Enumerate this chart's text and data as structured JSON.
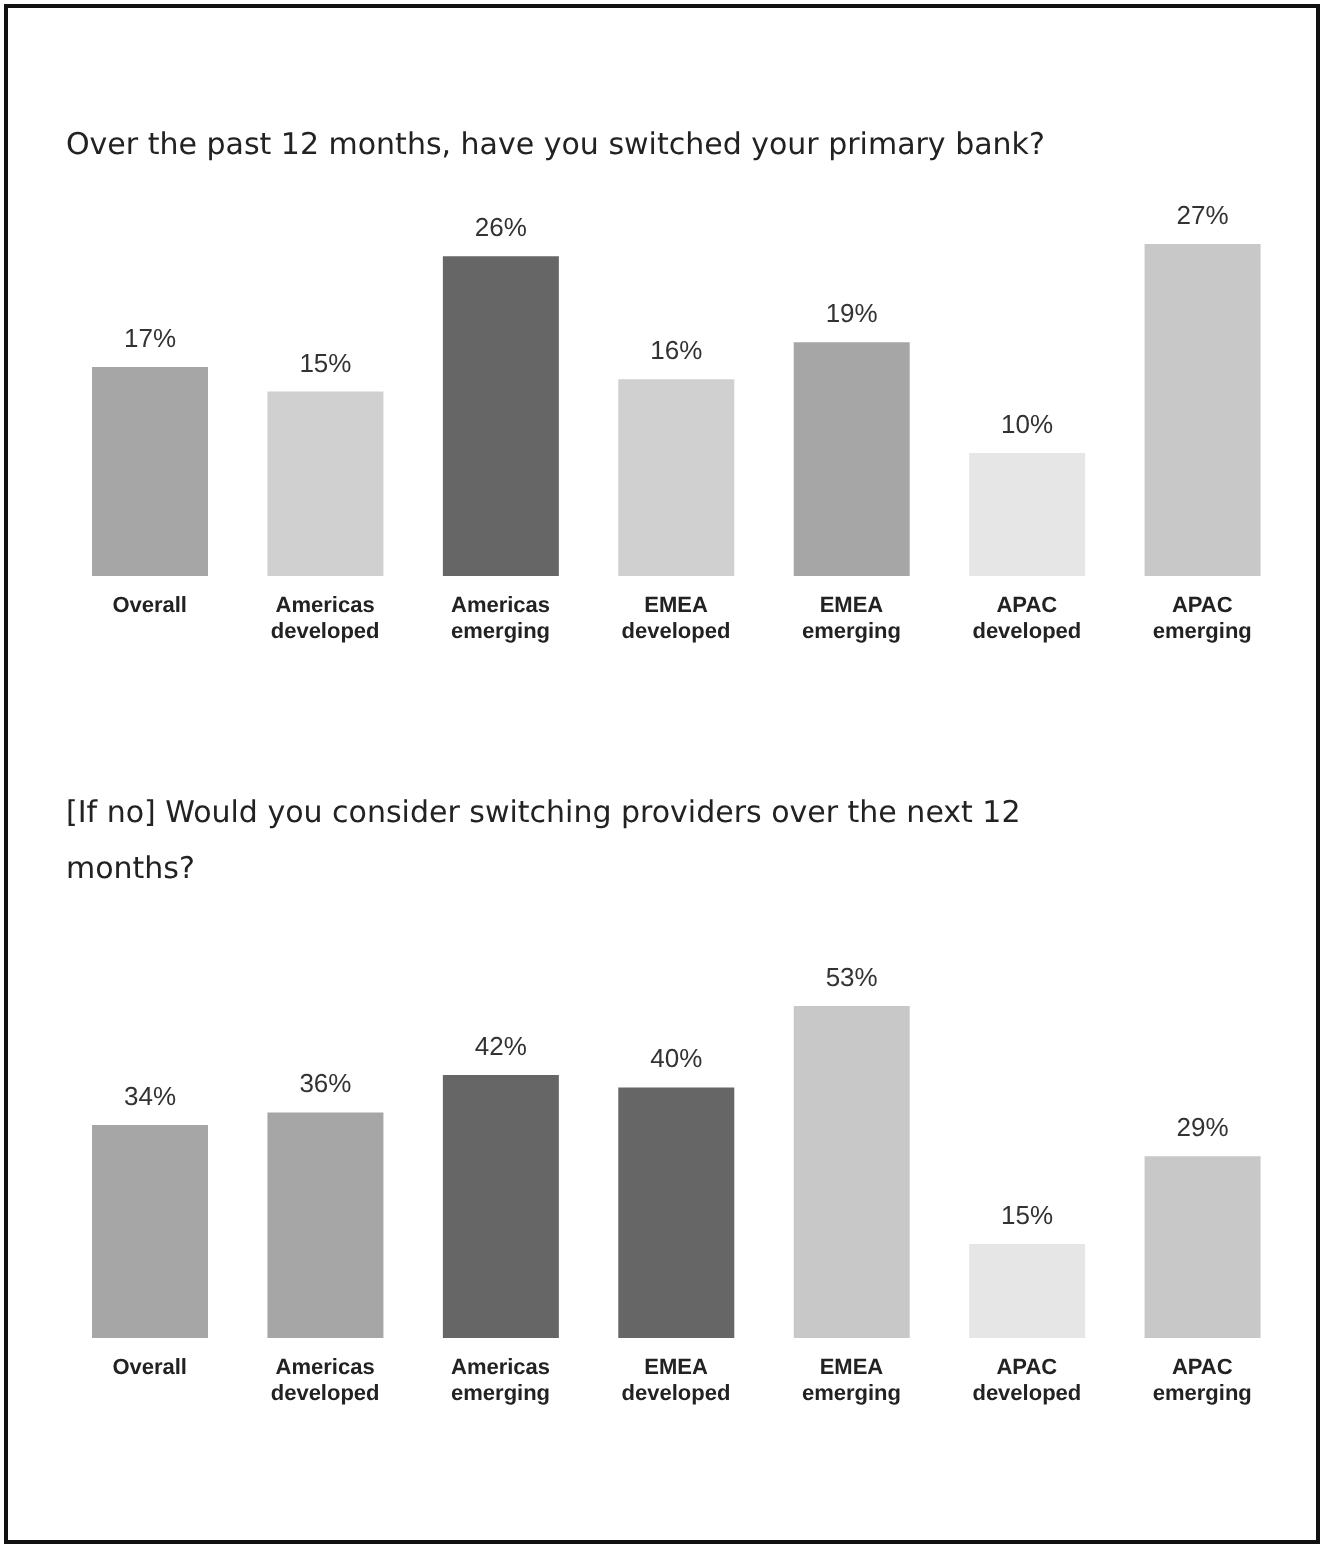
{
  "chart_data": [
    {
      "type": "bar",
      "title": "Over the past 12 months, have you switched your primary bank?",
      "categories": [
        "Overall",
        "Americas developed",
        "Americas emerging",
        "EMEA developed",
        "EMEA emerging",
        "APAC developed",
        "APAC emerging"
      ],
      "values": [
        17,
        15,
        26,
        16,
        19,
        10,
        27
      ],
      "value_labels": [
        "17%",
        "15%",
        "26%",
        "16%",
        "19%",
        "10%",
        "27%"
      ],
      "colors": [
        "#a6a6a6",
        "#d0d0d0",
        "#666666",
        "#d0d0d0",
        "#a6a6a6",
        "#e6e6e6",
        "#c8c8c8"
      ]
    },
    {
      "type": "bar",
      "title": "[If no] Would you consider switching providers over the next 12 months?",
      "categories": [
        "Overall",
        "Americas developed",
        "Americas emerging",
        "EMEA developed",
        "EMEA emerging",
        "APAC developed",
        "APAC emerging"
      ],
      "values": [
        34,
        36,
        42,
        40,
        53,
        15,
        29
      ],
      "value_labels": [
        "34%",
        "36%",
        "42%",
        "40%",
        "53%",
        "15%",
        "29%"
      ],
      "colors": [
        "#a6a6a6",
        "#a6a6a6",
        "#666666",
        "#666666",
        "#c8c8c8",
        "#e6e6e6",
        "#c8c8c8"
      ]
    }
  ]
}
